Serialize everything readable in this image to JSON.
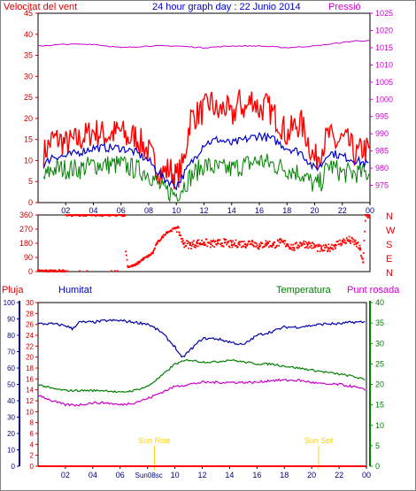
{
  "header": {
    "left": "Velocitat del vent",
    "center": "24 hour graph day : 22 Junio 2014",
    "right": "Pressió"
  },
  "colors": {
    "wind": "#ff0000",
    "wind_avg": "#0000cc",
    "wind_green": "#008000",
    "pressure": "#cc00cc",
    "direction": "#ff0000",
    "humidity": "#0000aa",
    "temperature": "#008000",
    "dewpoint": "#cc00cc",
    "rain": "#ff0000",
    "sun": "#ffd200"
  },
  "time_ticks": [
    "02",
    "04",
    "06",
    "08",
    "10",
    "12",
    "14",
    "16",
    "18",
    "20",
    "22",
    "00"
  ],
  "chart_data": [
    {
      "type": "line",
      "name": "wind-pressure",
      "title": "24 hour graph day : 22 Junio 2014",
      "left_axis": {
        "label": "Velocitat del vent",
        "ylim": [
          0,
          45
        ],
        "ticks": [
          0,
          5,
          10,
          15,
          20,
          25,
          30,
          35,
          40,
          45
        ]
      },
      "right_axis": {
        "label": "Pressió",
        "ylim": [
          970,
          1025
        ],
        "ticks": [
          975,
          980,
          985,
          990,
          995,
          1000,
          1005,
          1010,
          1015,
          1020,
          1025
        ]
      },
      "series": [
        {
          "key": "gust",
          "t": [
            0.5,
            1,
            1.5,
            2,
            3,
            4,
            5,
            6,
            6.5,
            7,
            7.5,
            8,
            8.5,
            9,
            9.5,
            10,
            10.5,
            11,
            11.5,
            12,
            12.5,
            13,
            13.5,
            14,
            14.5,
            15,
            15.5,
            16,
            16.5,
            17,
            17.5,
            18,
            18.5,
            19,
            19.5,
            20,
            20.5,
            21,
            21.5,
            22,
            22.5,
            23,
            23.5,
            24
          ],
          "values": [
            12,
            15,
            15,
            14,
            15,
            17,
            16,
            17,
            15,
            16,
            14,
            12,
            9,
            7,
            8,
            6,
            9,
            20,
            21,
            22,
            24,
            21,
            23,
            20,
            24,
            22,
            25,
            22,
            23,
            21,
            19,
            16,
            18,
            19,
            15,
            10,
            13,
            16,
            14,
            15,
            14,
            11,
            13,
            12
          ]
        },
        {
          "key": "average",
          "t": [
            0.5,
            1,
            2,
            3,
            4,
            5,
            6,
            7,
            8,
            9,
            10,
            11,
            12,
            13,
            14,
            15,
            16,
            17,
            18,
            19,
            20,
            20.5,
            21,
            22,
            23,
            24
          ],
          "values": [
            9,
            11,
            11,
            12,
            13,
            13,
            13,
            12,
            10,
            6,
            4,
            9,
            14,
            15,
            14,
            15,
            16,
            15,
            13,
            12,
            8,
            9,
            12,
            11,
            10,
            9
          ]
        },
        {
          "key": "green",
          "t": [
            0.5,
            1,
            2,
            3,
            4,
            5,
            6,
            7,
            8,
            9,
            10,
            11,
            12,
            13,
            14,
            15,
            16,
            17,
            18,
            19,
            20,
            20.5,
            21,
            22,
            23,
            24
          ],
          "values": [
            6,
            8,
            8,
            8,
            9,
            9,
            9,
            8,
            7,
            3,
            2,
            6,
            9,
            8,
            8,
            9,
            10,
            9,
            8,
            7,
            4,
            5,
            9,
            7,
            7,
            7
          ]
        },
        {
          "key": "pressure",
          "axis": "right",
          "t": [
            0,
            2,
            4,
            6,
            8,
            10,
            12,
            14,
            16,
            18,
            20,
            22,
            23,
            24
          ],
          "values": [
            1015.5,
            1016,
            1016,
            1015,
            1015.5,
            1015.5,
            1015,
            1015.5,
            1015.5,
            1015,
            1015.5,
            1016.5,
            1017,
            1017
          ]
        }
      ]
    },
    {
      "type": "scatter",
      "name": "wind-direction",
      "ylim": [
        0,
        360
      ],
      "ticks": [
        0,
        90,
        180,
        270,
        360
      ],
      "compass": [
        "N",
        "W",
        "S",
        "E",
        "N"
      ],
      "t": [
        0,
        0.5,
        1,
        1.5,
        2.2,
        3,
        3.5,
        4,
        4.5,
        5,
        5.5,
        6,
        6.5,
        7,
        7.3,
        7.6,
        8,
        8.3,
        8.6,
        9,
        9.3,
        9.6,
        10,
        10.2,
        10.5,
        11,
        11.5,
        12,
        12.5,
        13,
        13.5,
        14,
        14.5,
        15,
        15.5,
        16,
        16.5,
        17,
        17.5,
        18,
        18.5,
        19,
        19.5,
        20,
        20.5,
        21,
        21.5,
        22,
        22.5,
        23,
        23.3,
        23.5,
        23.7,
        23.9
      ],
      "values": [
        5,
        5,
        5,
        5,
        360,
        360,
        360,
        360,
        360,
        360,
        360,
        360,
        30,
        40,
        60,
        80,
        100,
        120,
        180,
        220,
        250,
        260,
        280,
        250,
        180,
        170,
        180,
        185,
        175,
        180,
        185,
        170,
        180,
        175,
        190,
        160,
        180,
        170,
        185,
        175,
        150,
        180,
        175,
        160,
        140,
        150,
        170,
        190,
        200,
        180,
        140,
        60,
        360,
        360
      ]
    },
    {
      "type": "line",
      "name": "humidity-temperature",
      "left_axis": {
        "label": "Humitat",
        "ylim": [
          0,
          100
        ],
        "ticks": [
          0,
          10,
          20,
          30,
          40,
          50,
          60,
          70,
          80,
          90,
          100
        ]
      },
      "mid_axis": {
        "label": "Pluja",
        "ylim": [
          0,
          30
        ],
        "ticks": [
          0,
          2,
          4,
          6,
          8,
          10,
          12,
          14,
          16,
          18,
          20,
          22,
          24,
          26,
          28,
          30
        ]
      },
      "right_axis": {
        "label": "Temperatura",
        "ylim": [
          0,
          40
        ],
        "ticks": [
          0,
          5,
          10,
          15,
          20,
          25,
          30,
          35,
          40
        ]
      },
      "dew_label": "Punt rosada",
      "series": [
        {
          "key": "humidity",
          "axis": "left",
          "t": [
            0,
            1,
            2,
            2.5,
            3,
            4,
            5,
            6,
            7,
            8,
            9,
            10,
            10.5,
            11,
            12,
            13,
            14,
            15,
            16,
            17,
            18,
            19,
            20,
            21,
            22,
            23,
            24
          ],
          "values": [
            87,
            87,
            86,
            84,
            88,
            88,
            89,
            89,
            88,
            87,
            82,
            73,
            66,
            70,
            78,
            78,
            76,
            74,
            80,
            82,
            85,
            85,
            86,
            87,
            87,
            88,
            88
          ]
        },
        {
          "key": "temperature",
          "axis": "right",
          "t": [
            0,
            1,
            2,
            3,
            4,
            5,
            6,
            7,
            8,
            9,
            10,
            11,
            12,
            13,
            14,
            15,
            16,
            17,
            18,
            19,
            20,
            21,
            22,
            23,
            24
          ],
          "values": [
            20,
            19,
            18.5,
            18.5,
            18.5,
            18.5,
            18,
            18.5,
            19.5,
            22,
            25,
            26,
            25.5,
            25.5,
            26,
            25.5,
            25,
            25,
            24.5,
            24,
            23.5,
            23,
            22.5,
            22,
            21
          ]
        },
        {
          "key": "dewpoint",
          "axis": "right",
          "t": [
            0,
            1,
            2,
            3,
            4,
            5,
            6,
            7,
            8,
            9,
            10,
            11,
            12,
            13,
            14,
            15,
            16,
            17,
            18,
            19,
            20,
            21,
            22,
            23,
            24
          ],
          "values": [
            17.5,
            16,
            15,
            15,
            15.5,
            15.5,
            15,
            15.5,
            16.5,
            18,
            19.5,
            20,
            20.5,
            20.5,
            20.5,
            20.5,
            20.5,
            21,
            21,
            21,
            20.5,
            20,
            20,
            19.5,
            18.5
          ]
        },
        {
          "key": "rain",
          "axis": "mid",
          "t": [
            0,
            24
          ],
          "values": [
            0,
            0
          ]
        }
      ],
      "markers": [
        {
          "label": "Sun Rise",
          "t": 8.5
        },
        {
          "label": "Sun Set",
          "t": 20.5
        }
      ]
    }
  ]
}
